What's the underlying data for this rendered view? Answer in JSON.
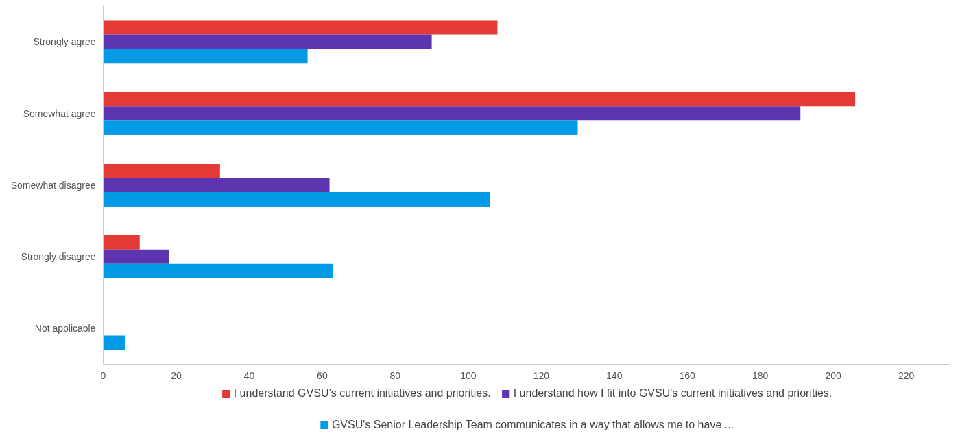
{
  "chart_data": {
    "type": "bar",
    "orientation": "horizontal",
    "categories": [
      "Strongly agree",
      "Somewhat agree",
      "Somewhat disagree",
      "Strongly disagree",
      "Not applicable"
    ],
    "series": [
      {
        "name": "I understand GVSU’s current initiatives and priorities.",
        "color": "#e53935",
        "values": [
          108,
          206,
          32,
          10,
          0
        ]
      },
      {
        "name": "I understand how I fit into GVSU's current initiatives and priorities.",
        "color": "#5e35b1",
        "values": [
          90,
          191,
          62,
          18,
          0
        ]
      },
      {
        "name": "GVSU's Senior Leadership Team communicates in a way that allows me to have ...",
        "color": "#039be5",
        "values": [
          56,
          130,
          106,
          63,
          6
        ]
      }
    ],
    "xlim": [
      0,
      232
    ],
    "xticks": [
      0,
      20,
      40,
      60,
      80,
      100,
      120,
      140,
      160,
      180,
      200,
      220
    ],
    "grid": false,
    "legend": "bottom"
  }
}
